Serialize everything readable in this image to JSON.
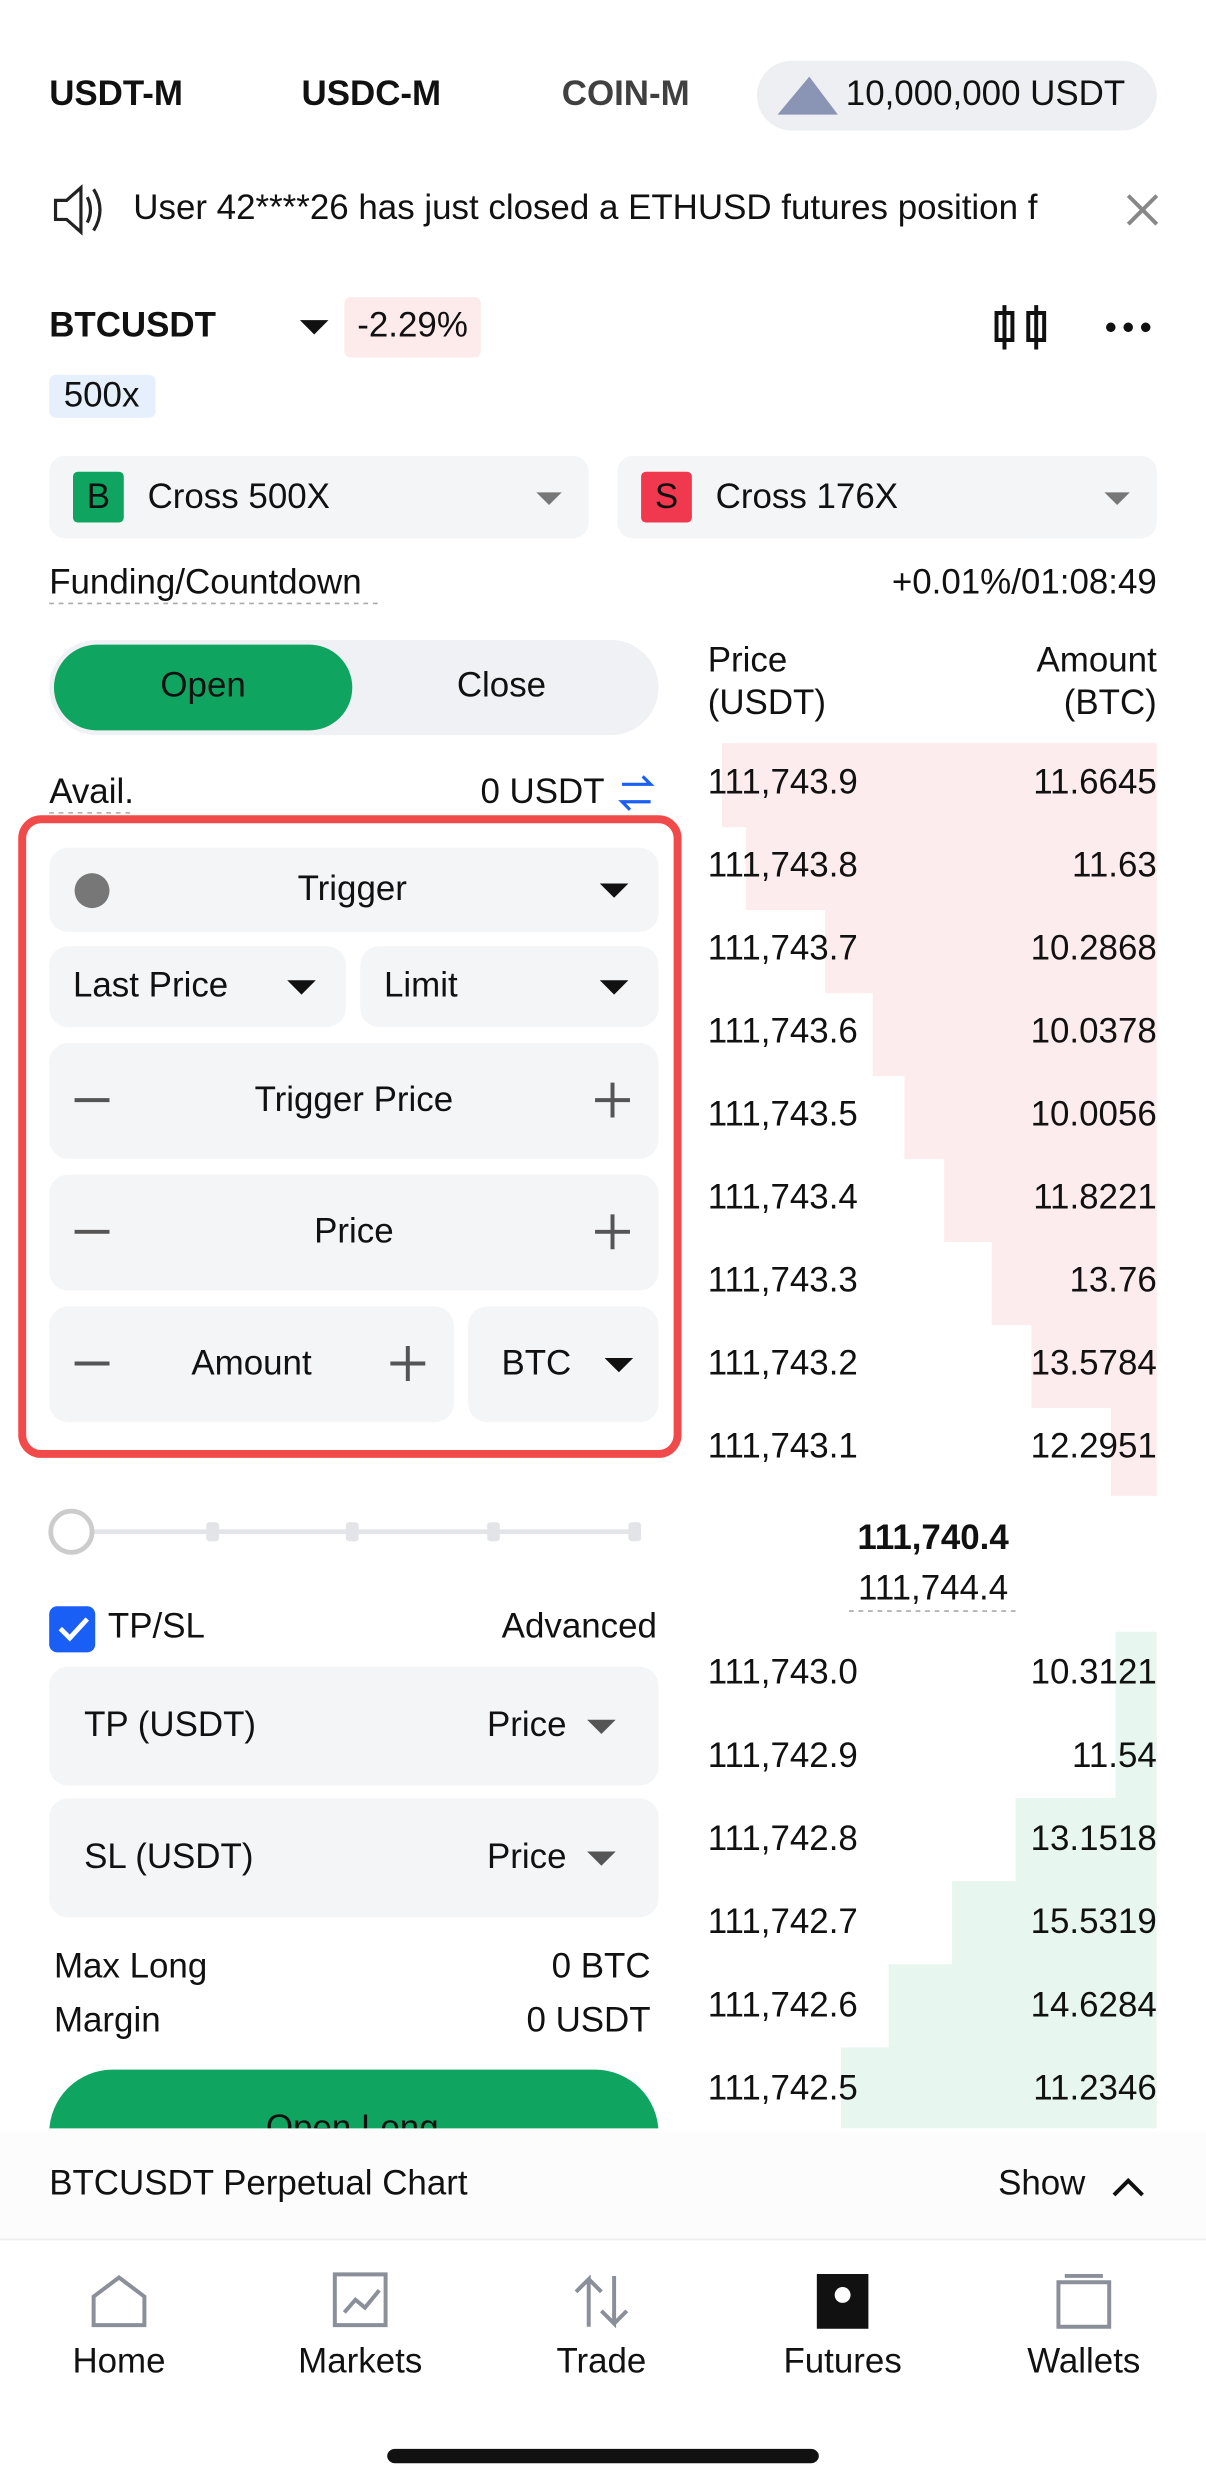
{
  "tabs": [
    "USDT-M",
    "USDC-M",
    "COIN-M"
  ],
  "balance": "10,000,000 USDT",
  "notice": "User 42****26 has just closed a ETHUSD futures position f",
  "symbol": "BTCUSDT",
  "change": "-2.29%",
  "leverage_badge": "500x",
  "long_margin": {
    "badge": "B",
    "label": "Cross 500X"
  },
  "short_margin": {
    "badge": "S",
    "label": "Cross 176X"
  },
  "funding": {
    "label": "Funding/Countdown",
    "value": "+0.01%/01:08:49"
  },
  "order_tabs": [
    "Open",
    "Close"
  ],
  "avail": {
    "label": "Avail.",
    "value": "0 USDT"
  },
  "form": {
    "order_type": "Trigger",
    "price_type": "Last Price",
    "exec_type": "Limit",
    "trigger_placeholder": "Trigger Price",
    "price_placeholder": "Price",
    "amount_placeholder": "Amount",
    "unit": "BTC"
  },
  "tpsl": {
    "label": "TP/SL",
    "advanced": "Advanced",
    "tp": "TP (USDT)",
    "sl": "SL (USDT)",
    "tp_mode": "Price",
    "sl_mode": "Price"
  },
  "summary": [
    {
      "label": "Max Long",
      "value": "0 BTC"
    },
    {
      "label": "Margin",
      "value": "0 USDT"
    }
  ],
  "submit": "Open Long",
  "orderbook": {
    "price": "Price",
    "price_unit": "(USDT)",
    "amount": "Amount",
    "amount_unit": "(BTC)",
    "asks": [
      [
        "111,743.9",
        "11.6645"
      ],
      [
        "111,743.8",
        "11.63"
      ],
      [
        "111,743.7",
        "10.2868"
      ],
      [
        "111,743.6",
        "10.0378"
      ],
      [
        "111,743.5",
        "10.0056"
      ],
      [
        "111,743.4",
        "11.8221"
      ],
      [
        "111,743.3",
        "13.76"
      ],
      [
        "111,743.2",
        "13.5784"
      ],
      [
        "111,743.1",
        "12.2951"
      ]
    ],
    "last_price": "111,740.4",
    "mark_price": "111,744.4",
    "bids": [
      [
        "111,743.0",
        "10.3121"
      ],
      [
        "111,742.9",
        "11.54"
      ],
      [
        "111,742.8",
        "13.1518"
      ],
      [
        "111,742.7",
        "15.5319"
      ],
      [
        "111,742.6",
        "14.6284"
      ],
      [
        "111,742.5",
        "11.2346"
      ]
    ]
  },
  "chart_bar": {
    "label": "BTCUSDT Perpetual Chart",
    "action": "Show"
  },
  "nav": [
    "Home",
    "Markets",
    "Trade",
    "Futures",
    "Wallets"
  ]
}
